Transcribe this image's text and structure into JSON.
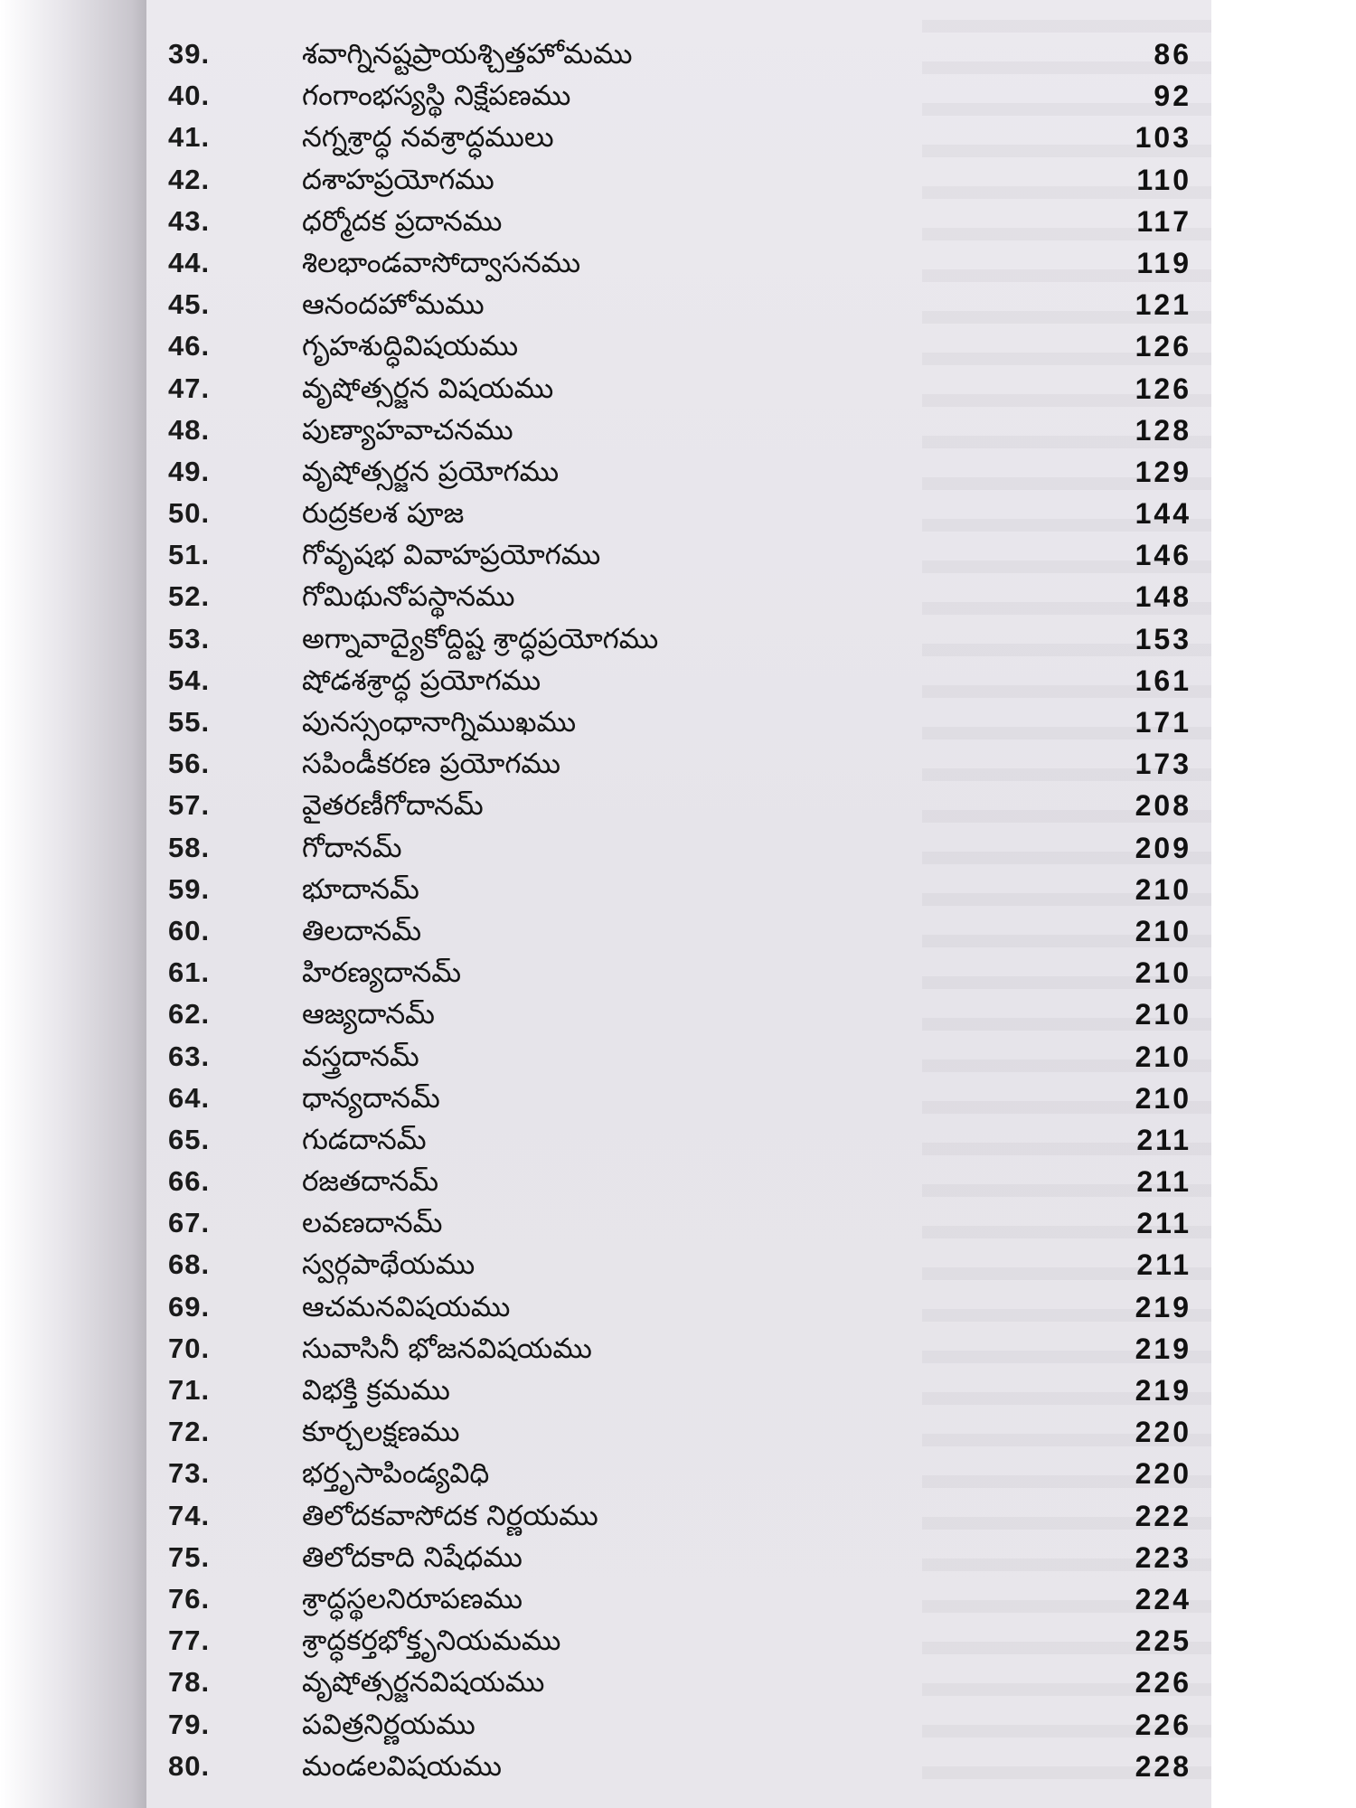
{
  "entries": [
    {
      "num": "39.",
      "title": "శవాగ్నినష్టప్రాయశ్చిత్తహోమము",
      "page": "86"
    },
    {
      "num": "40.",
      "title": "గంగాంభస్యస్థి నిక్షేపణము",
      "page": "92"
    },
    {
      "num": "41.",
      "title": "నగ్నశ్రాద్ధ నవశ్రాద్ధములు",
      "page": "103"
    },
    {
      "num": "42.",
      "title": "దశాహప్రయోగము",
      "page": "110"
    },
    {
      "num": "43.",
      "title": "ధర్మోదక ప్రదానము",
      "page": "117"
    },
    {
      "num": "44.",
      "title": "శిలభాండవాసోద్వాసనము",
      "page": "119"
    },
    {
      "num": "45.",
      "title": "ఆనందహోమము",
      "page": "121"
    },
    {
      "num": "46.",
      "title": "గృహశుద్ధివిషయము",
      "page": "126"
    },
    {
      "num": "47.",
      "title": "వృషోత్సర్జన విషయము",
      "page": "126"
    },
    {
      "num": "48.",
      "title": "పుణ్యాహవాచనము",
      "page": "128"
    },
    {
      "num": "49.",
      "title": "వృషోత్సర్జన ప్రయోగము",
      "page": "129"
    },
    {
      "num": "50.",
      "title": "రుద్రకలశ పూజ",
      "page": "144"
    },
    {
      "num": "51.",
      "title": "గోవృషభ వివాహప్రయోగము",
      "page": "146"
    },
    {
      "num": "52.",
      "title": "గోమిథునోపస్థానము",
      "page": "148"
    },
    {
      "num": "53.",
      "title": "అగ్నావాద్యైకోద్దిష్ట శ్రాద్ధప్రయోగము",
      "page": "153"
    },
    {
      "num": "54.",
      "title": "షోడశశ్రాద్ధ ప్రయోగము",
      "page": "161"
    },
    {
      "num": "55.",
      "title": "పునస్సంధానాగ్నిముఖము",
      "page": "171"
    },
    {
      "num": "56.",
      "title": "సపిండీకరణ ప్రయోగము",
      "page": "173"
    },
    {
      "num": "57.",
      "title": "వైతరణీగోదానమ్",
      "page": "208"
    },
    {
      "num": "58.",
      "title": "గోదానమ్",
      "page": "209"
    },
    {
      "num": "59.",
      "title": "భూదానమ్",
      "page": "210"
    },
    {
      "num": "60.",
      "title": "తిలదానమ్",
      "page": "210"
    },
    {
      "num": "61.",
      "title": "హిరణ్యదానమ్",
      "page": "210"
    },
    {
      "num": "62.",
      "title": "ఆజ్యదానమ్",
      "page": "210"
    },
    {
      "num": "63.",
      "title": "వస్త్రదానమ్",
      "page": "210"
    },
    {
      "num": "64.",
      "title": "ధాన్యదానమ్",
      "page": "210"
    },
    {
      "num": "65.",
      "title": "గుడదానమ్",
      "page": "211"
    },
    {
      "num": "66.",
      "title": "రజతదానమ్",
      "page": "211"
    },
    {
      "num": "67.",
      "title": "లవణదానమ్",
      "page": "211"
    },
    {
      "num": "68.",
      "title": "స్వర్గపాథేయము",
      "page": "211"
    },
    {
      "num": "69.",
      "title": "ఆచమనవిషయము",
      "page": "219"
    },
    {
      "num": "70.",
      "title": "సువాసినీ భోజనవిషయము",
      "page": "219"
    },
    {
      "num": "71.",
      "title": "విభక్తి క్రమము",
      "page": "219"
    },
    {
      "num": "72.",
      "title": "కూర్చలక్షణము",
      "page": "220"
    },
    {
      "num": "73.",
      "title": "భర్తృసాపిండ్యవిధి",
      "page": "220"
    },
    {
      "num": "74.",
      "title": "తిలోదకవాసోదక నిర్ణయము",
      "page": "222"
    },
    {
      "num": "75.",
      "title": "తిలోదకాది నిషేధము",
      "page": "223"
    },
    {
      "num": "76.",
      "title": "శ్రాద్ధస్థలనిరూపణము",
      "page": "224"
    },
    {
      "num": "77.",
      "title": "శ్రాద్ధకర్తభోక్తృనియమము",
      "page": "225"
    },
    {
      "num": "78.",
      "title": "వృషోత్సర్జనవిషయము",
      "page": "226"
    },
    {
      "num": "79.",
      "title": "పవిత్రనిర్ణయము",
      "page": "226"
    },
    {
      "num": "80.",
      "title": "మండలవిషయము",
      "page": "228"
    }
  ]
}
